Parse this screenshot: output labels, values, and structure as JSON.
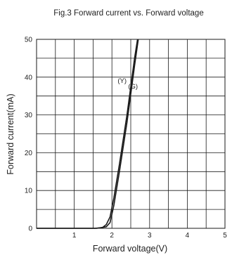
{
  "chart_data": {
    "type": "line",
    "title": "Fig.3 Forward current vs. Forward voltage",
    "xlabel": "Forward voltage(V)",
    "ylabel": "Forward current(mA)",
    "xlim": [
      0,
      5
    ],
    "ylim": [
      0,
      50
    ],
    "x_ticks": [
      1,
      2,
      3,
      4,
      5
    ],
    "x_tick_labels": [
      "1",
      "2",
      "3",
      "4",
      "5"
    ],
    "y_ticks": [
      0,
      10,
      20,
      30,
      40,
      50
    ],
    "y_tick_labels": [
      "0",
      "10",
      "20",
      "30",
      "40",
      "50"
    ],
    "grid": true,
    "line_color": "#1a1a1a",
    "series": [
      {
        "name": "(Y)",
        "points": [
          [
            0.0,
            0.0
          ],
          [
            1.55,
            0.0
          ],
          [
            1.75,
            0.2
          ],
          [
            1.85,
            1.0
          ],
          [
            1.95,
            3.0
          ],
          [
            2.05,
            8.0
          ],
          [
            2.2,
            17.0
          ],
          [
            2.4,
            30.0
          ],
          [
            2.6,
            45.0
          ],
          [
            2.68,
            50.0
          ]
        ]
      },
      {
        "name": "(G)",
        "points": [
          [
            0.0,
            0.0
          ],
          [
            1.6,
            0.0
          ],
          [
            1.85,
            0.4
          ],
          [
            1.95,
            1.5
          ],
          [
            2.05,
            6.0
          ],
          [
            2.2,
            15.0
          ],
          [
            2.4,
            28.0
          ],
          [
            2.6,
            43.0
          ],
          [
            2.7,
            50.0
          ]
        ]
      }
    ],
    "annotations": [
      {
        "text": "(Y)",
        "x": 2.27,
        "y": 38.5
      },
      {
        "text": "(G)",
        "x": 2.56,
        "y": 37.0
      }
    ]
  }
}
